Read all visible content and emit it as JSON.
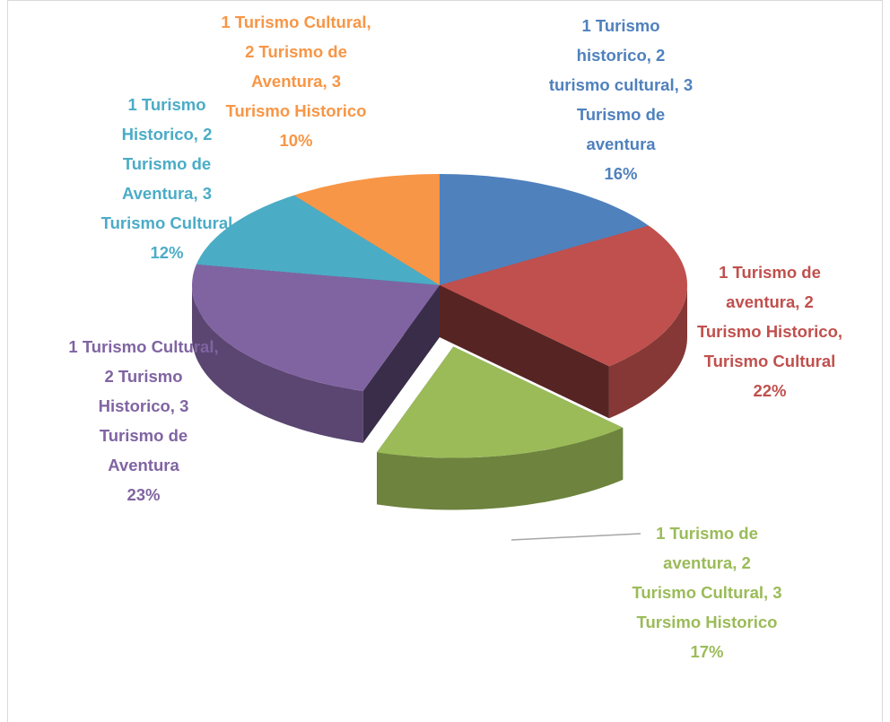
{
  "chart_data": {
    "type": "pie",
    "categories": [
      "1 Turismo historico, 2 turismo cultural, 3 Turismo de aventura",
      "1 Turismo de aventura, 2 Turismo Historico, Turismo Cultural",
      "1 Turismo de aventura, 2 Turismo Cultural, 3 Tursimo Historico",
      "1 Turismo Cultural, 2 Turismo Historico, 3 Turismo de Aventura",
      "1 Turismo Historico, 2 Turismo de Aventura, 3 Turismo Cultural",
      "1 Turismo Cultural, 2 Turismo de Aventura, 3 Turismo Historico"
    ],
    "values": [
      16,
      22,
      17,
      23,
      12,
      10
    ],
    "value_labels": [
      "16%",
      "22%",
      "17%",
      "23%",
      "12%",
      "10%"
    ],
    "colors": [
      "#4f81bd",
      "#c0504d",
      "#9bbb59",
      "#8064a2",
      "#4bacc6",
      "#f79646"
    ],
    "exploded": [
      2
    ]
  }
}
